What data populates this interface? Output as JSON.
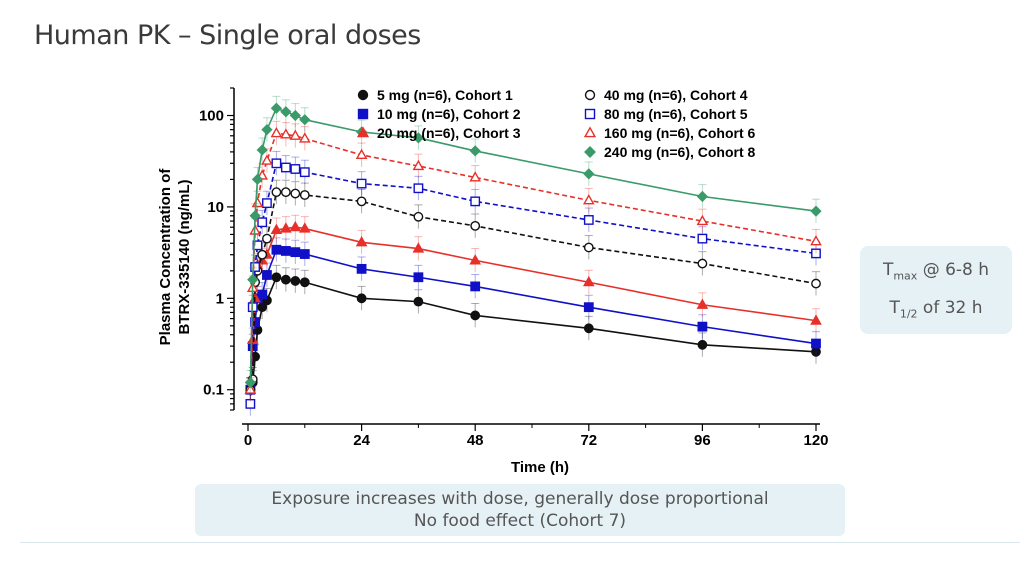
{
  "slide": {
    "title": "Human PK – Single oral doses",
    "callout_right": {
      "tmax_main": "T",
      "tmax_sub": "max",
      "tmax_rest": " @ 6-8 h",
      "thalf_main": "T",
      "thalf_sub": "1/2",
      "thalf_rest": " of 32 h"
    },
    "callout_bottom": {
      "line1": "Exposure increases with dose, generally dose proportional",
      "line2": "No food effect (Cohort 7)"
    }
  },
  "colors": {
    "black": "#111111",
    "blue": "#1010c8",
    "red": "#e8302a",
    "green": "#3a9a6a",
    "callout_bg": "#e6f1f5"
  },
  "chart_data": {
    "type": "line",
    "title": "",
    "xlabel": "Time (h)",
    "ylabel": [
      "Plasma Concentration of",
      "BTRX-335140 (ng/mL)"
    ],
    "yscale": "log",
    "xlim": [
      0,
      120
    ],
    "ylim": [
      0.06,
      200
    ],
    "xticks": [
      0,
      24,
      48,
      72,
      96,
      120
    ],
    "xtick_labels": [
      "0",
      "24",
      "48",
      "72",
      "96",
      "120"
    ],
    "yticks": [
      0.1,
      1,
      10,
      100
    ],
    "ytick_labels": [
      "0.1",
      "1",
      "10",
      "100"
    ],
    "legend_position": "top",
    "series": [
      {
        "name": "5 mg (n=6), Cohort 1",
        "color": "#111111",
        "marker": "circle",
        "filled": true,
        "dashed": false,
        "x": [
          0.5,
          1,
          1.5,
          2,
          3,
          4,
          6,
          8,
          10,
          12,
          24,
          36,
          48,
          72,
          96,
          120
        ],
        "y": [
          0.1,
          0.12,
          0.23,
          0.45,
          0.8,
          0.95,
          1.7,
          1.6,
          1.55,
          1.5,
          1.0,
          0.92,
          0.65,
          0.47,
          0.31,
          0.26
        ]
      },
      {
        "name": "10 mg (n=6), Cohort 2",
        "color": "#1010c8",
        "marker": "square",
        "filled": true,
        "dashed": false,
        "x": [
          0.5,
          1,
          1.5,
          2,
          3,
          4,
          6,
          8,
          10,
          12,
          24,
          36,
          48,
          72,
          96,
          120
        ],
        "y": [
          0.1,
          0.3,
          0.55,
          1.0,
          1.1,
          1.8,
          3.4,
          3.3,
          3.2,
          3.05,
          2.1,
          1.7,
          1.35,
          0.8,
          0.49,
          0.32
        ]
      },
      {
        "name": "20 mg (n=6), Cohort 3",
        "color": "#e8302a",
        "marker": "triangle",
        "filled": true,
        "dashed": false,
        "x": [
          0.5,
          1,
          1.5,
          2,
          3,
          4,
          6,
          8,
          10,
          12,
          24,
          36,
          48,
          72,
          96,
          120
        ],
        "y": [
          0.1,
          0.35,
          1.0,
          2.3,
          2.6,
          3.0,
          5.6,
          5.8,
          6.0,
          5.8,
          4.1,
          3.5,
          2.6,
          1.5,
          0.85,
          0.57
        ]
      },
      {
        "name": "40 mg (n=6), Cohort 4",
        "color": "#111111",
        "marker": "circle",
        "filled": false,
        "dashed": true,
        "x": [
          0.5,
          1,
          1.5,
          2,
          3,
          4,
          6,
          8,
          10,
          12,
          24,
          36,
          48,
          72,
          96,
          120
        ],
        "y": [
          0.1,
          0.13,
          1.5,
          2.0,
          3.0,
          4.5,
          14.5,
          14.5,
          14.0,
          13.5,
          11.5,
          7.8,
          6.2,
          3.6,
          2.4,
          1.45
        ]
      },
      {
        "name": "80 mg (n=6), Cohort 5",
        "color": "#1010c8",
        "marker": "square",
        "filled": false,
        "dashed": true,
        "x": [
          0.5,
          1,
          1.5,
          2,
          3,
          4,
          6,
          8,
          10,
          12,
          24,
          36,
          48,
          72,
          96,
          120
        ],
        "y": [
          0.07,
          0.8,
          2.2,
          3.8,
          6.8,
          11.0,
          30.0,
          27.0,
          26.0,
          24.0,
          18.0,
          16.0,
          11.5,
          7.2,
          4.5,
          3.1
        ]
      },
      {
        "name": "160 mg (n=6), Cohort 6",
        "color": "#e8302a",
        "marker": "triangle",
        "filled": false,
        "dashed": true,
        "x": [
          0.5,
          1,
          1.5,
          2,
          3,
          4,
          6,
          8,
          10,
          12,
          24,
          36,
          48,
          72,
          96,
          120
        ],
        "y": [
          0.1,
          1.3,
          5.5,
          11.0,
          22.0,
          32.0,
          64.0,
          62.0,
          60.0,
          56.0,
          37.0,
          28.0,
          21.0,
          11.8,
          7.0,
          4.2
        ]
      },
      {
        "name": "240 mg (n=6), Cohort 8",
        "color": "#3a9a6a",
        "marker": "diamond",
        "filled": true,
        "dashed": false,
        "x": [
          0.5,
          1,
          1.5,
          2,
          3,
          4,
          6,
          8,
          10,
          12,
          24,
          36,
          48,
          72,
          96,
          120
        ],
        "y": [
          0.12,
          1.6,
          8.0,
          20.0,
          42.0,
          70.0,
          120.0,
          110.0,
          100.0,
          90.0,
          66.0,
          57.0,
          41.0,
          23.0,
          13.0,
          9.0
        ]
      }
    ]
  }
}
